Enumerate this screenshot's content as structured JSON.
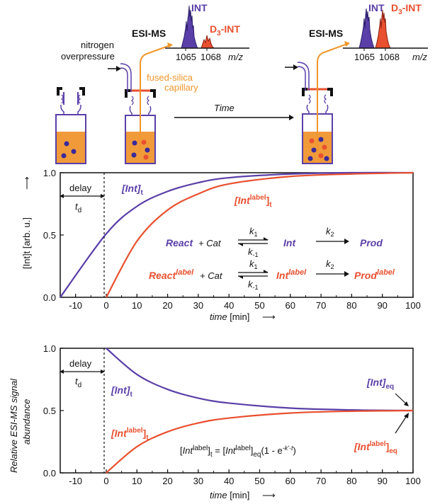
{
  "colors": {
    "int": "#5a3fa8",
    "label": "#e8502f",
    "capillary": "#f0962a",
    "solution": "#f09a3a",
    "dark": "#111111"
  },
  "scheme": {
    "esi_ms_left": "ESI-MS",
    "esi_ms_right": "ESI-MS",
    "nitrogen": "nitrogen",
    "overpressure": "overpressure",
    "fused_silica": "fused-silica",
    "capillary": "capillary",
    "time": "Time",
    "spectrum_int": "INT",
    "spectrum_d": "D",
    "spectrum_sub3": "3",
    "spectrum_int2": "-INT",
    "tick_1065": "1065",
    "tick_1068": "1068",
    "mz": "m/z"
  },
  "chart_data": [
    {
      "type": "line",
      "xlabel_text": "time",
      "xlabel_unit": "[min]",
      "ylabel": "[Int]t [arb. u.]",
      "ylim": [
        0,
        1.0
      ],
      "xlim": [
        -15,
        100
      ],
      "x_ticks": [
        "-10",
        "0",
        "10",
        "20",
        "30",
        "40",
        "50",
        "60",
        "70",
        "80",
        "90",
        "100"
      ],
      "y_ticks": [
        "0.0",
        "0.5",
        "1.0"
      ],
      "delay": "delay",
      "td_main": "t",
      "td_sub": "d",
      "series": [
        {
          "label_main": "[Int]",
          "label_sub": "t",
          "x": [
            -15,
            0,
            10,
            20,
            30,
            40,
            60,
            80,
            100
          ],
          "y": [
            0.0,
            0.51,
            0.73,
            0.85,
            0.92,
            0.96,
            0.99,
            1.0,
            1.0
          ]
        },
        {
          "label_main": "[Int",
          "label_sup": "label",
          "label_close": "]",
          "label_sub": "t",
          "x": [
            0,
            10,
            20,
            30,
            40,
            60,
            80,
            100
          ],
          "y": [
            0.0,
            0.45,
            0.7,
            0.83,
            0.91,
            0.97,
            0.99,
            1.0
          ]
        }
      ],
      "reaction1": {
        "react": "React",
        "plus_cat": " + Cat",
        "k1": "k",
        "k1_sub": "1",
        "km1": "k",
        "km1_sub": "-1",
        "int": "Int",
        "k2": "k",
        "k2_sub": "2",
        "prod": "Prod"
      },
      "reaction2": {
        "react": "React",
        "react_sup": "label",
        "plus_cat": "+ Cat",
        "k1": "k",
        "k1_sub": "1",
        "km1": "k",
        "km1_sub": "-1",
        "int": "Int",
        "int_sup": "label",
        "k2": "k",
        "k2_sub": "2",
        "prod": "Prod",
        "prod_sup": "label"
      }
    },
    {
      "type": "line",
      "xlabel_text": "time",
      "xlabel_unit": "[min]",
      "ylabel_line1": "Relative ESI-MS signal",
      "ylabel_line2": "abundance",
      "ylim": [
        0,
        1.0
      ],
      "xlim": [
        -15,
        100
      ],
      "x_ticks": [
        "-10",
        "0",
        "10",
        "20",
        "30",
        "40",
        "50",
        "60",
        "70",
        "80",
        "90",
        "100"
      ],
      "y_ticks": [
        "0.0",
        "0.5",
        "1.0"
      ],
      "delay": "delay",
      "td_main": "t",
      "td_sub": "d",
      "series": [
        {
          "label_main": "[Int]",
          "label_sub": "t",
          "x": [
            0,
            10,
            20,
            30,
            40,
            60,
            80,
            100
          ],
          "y": [
            1.0,
            0.79,
            0.67,
            0.6,
            0.56,
            0.52,
            0.505,
            0.5
          ]
        },
        {
          "label_main": "[Int",
          "label_sup": "label",
          "label_close": "]",
          "label_sub": "t",
          "x": [
            0,
            10,
            20,
            30,
            40,
            60,
            80,
            100
          ],
          "y": [
            0.0,
            0.21,
            0.33,
            0.4,
            0.44,
            0.48,
            0.495,
            0.5
          ]
        }
      ],
      "eq_int_main": "[Int]",
      "eq_int_sub": "eq",
      "eq_label_main": "[Int",
      "eq_label_sup": "label",
      "eq_label_close": "]",
      "eq_label_sub": "eq",
      "formula": {
        "p1": "[",
        "int": "Int",
        "sup": "label",
        "p2": "]",
        "sub_t": "t",
        "eq": " = [",
        "int2": "Int",
        "sup2": "label",
        "p3": "]",
        "sub_eq": "eq",
        "p4": "(1 - e",
        "exp": "-k'·t",
        "p5": ")"
      }
    }
  ]
}
